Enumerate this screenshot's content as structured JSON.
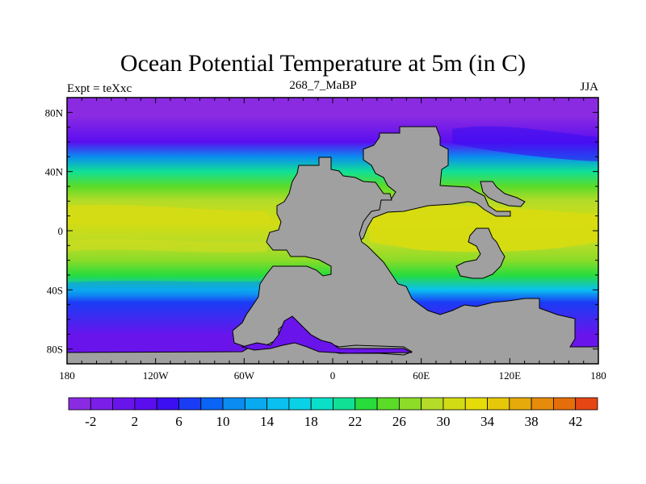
{
  "title": "Ocean Potential Temperature at 5m (in C)",
  "left_string": "Expt = teXxc",
  "center_string": "268_7_MaBP",
  "right_string": "JJA",
  "colors": {
    "land": "#a0a0a0",
    "coast": "#000000"
  },
  "chart_data": {
    "type": "heatmap",
    "projection": "cylindrical-equidistant",
    "xlim": [
      -180,
      180
    ],
    "ylim": [
      -90,
      90
    ],
    "x_ticks": [
      {
        "value": -180,
        "label": "180"
      },
      {
        "value": -120,
        "label": "120W"
      },
      {
        "value": -60,
        "label": "60W"
      },
      {
        "value": 0,
        "label": "0"
      },
      {
        "value": 60,
        "label": "60E"
      },
      {
        "value": 120,
        "label": "120E"
      },
      {
        "value": 180,
        "label": "180"
      }
    ],
    "y_ticks": [
      {
        "value": 80,
        "label": "80N"
      },
      {
        "value": 40,
        "label": "40N"
      },
      {
        "value": 0,
        "label": "0"
      },
      {
        "value": -40,
        "label": "40S"
      },
      {
        "value": -80,
        "label": "80S"
      }
    ],
    "temperature_bands": [
      {
        "lat_min": 65,
        "lat_max": 90,
        "temp": -3
      },
      {
        "lat_min": 55,
        "lat_max": 65,
        "temp": 2
      },
      {
        "lat_min": 45,
        "lat_max": 55,
        "temp": 10
      },
      {
        "lat_min": 35,
        "lat_max": 45,
        "temp": 20
      },
      {
        "lat_min": 25,
        "lat_max": 35,
        "temp": 25
      },
      {
        "lat_min": 15,
        "lat_max": 25,
        "temp": 28
      },
      {
        "lat_min": -5,
        "lat_max": 15,
        "temp": 31
      },
      {
        "lat_min": -15,
        "lat_max": -5,
        "temp": 29
      },
      {
        "lat_min": -25,
        "lat_max": -15,
        "temp": 26
      },
      {
        "lat_min": -35,
        "lat_max": -25,
        "temp": 22
      },
      {
        "lat_min": -45,
        "lat_max": -35,
        "temp": 14
      },
      {
        "lat_min": -52,
        "lat_max": -45,
        "temp": 7
      },
      {
        "lat_min": -90,
        "lat_max": -52,
        "temp": 0
      }
    ],
    "colorbar": {
      "min": -4,
      "max": 44,
      "step": 2,
      "labels": [
        "-2",
        "2",
        "6",
        "10",
        "14",
        "18",
        "22",
        "26",
        "30",
        "34",
        "38",
        "42"
      ],
      "colors": [
        "#8a2be2",
        "#7a1ee8",
        "#6a14ec",
        "#5a0ef0",
        "#3c0ef2",
        "#1a3cf5",
        "#0a64f5",
        "#0a8cf0",
        "#0aaaf0",
        "#0ac0f0",
        "#0ad2e6",
        "#0ae0c8",
        "#10e096",
        "#28dc3c",
        "#5adc28",
        "#8cdc28",
        "#b4dc28",
        "#d2dc14",
        "#e6dc0a",
        "#e6c80a",
        "#e6aa0a",
        "#e68c0a",
        "#e66e0a",
        "#e64614"
      ]
    }
  }
}
